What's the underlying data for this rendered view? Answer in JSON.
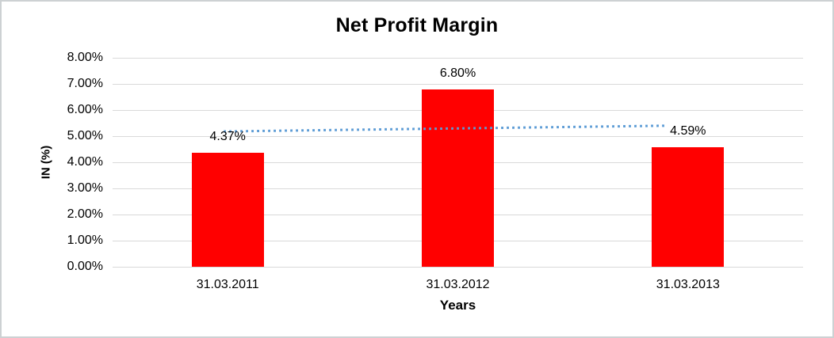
{
  "chart_data": {
    "type": "bar",
    "title": "Net Profit Margin",
    "xlabel": "Years",
    "ylabel": "IN (%)",
    "categories": [
      "31.03.2011",
      "31.03.2012",
      "31.03.2013"
    ],
    "values": [
      4.37,
      6.8,
      4.59
    ],
    "value_labels": [
      "4.37%",
      "6.80%",
      "4.59%"
    ],
    "ylim": [
      0,
      8
    ],
    "ytick_step": 1,
    "ytick_labels": [
      "0.00%",
      "1.00%",
      "2.00%",
      "3.00%",
      "4.00%",
      "5.00%",
      "6.00%",
      "7.00%",
      "8.00%"
    ],
    "grid": "horizontal",
    "legend": "none",
    "colors": {
      "bar": "#ff0000",
      "trendline": "#5b9bd5",
      "gridline": "#d9d9d9",
      "text": "#000000"
    },
    "trendline": {
      "style": "dotted",
      "start_value_pct": 5.18,
      "end_value_pct": 5.4
    }
  }
}
